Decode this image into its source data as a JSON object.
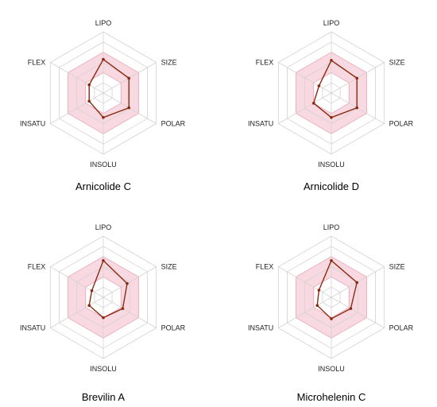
{
  "axes": [
    "LIPO",
    "SIZE",
    "POLAR",
    "INSOLU",
    "INSATU",
    "FLEX"
  ],
  "colors": {
    "optimal_fill": "#f9d9e1",
    "optimal_stroke": "#e9a3b3",
    "grid": "#d2d2d2",
    "series": "#8b2a10"
  },
  "chart_data": [
    {
      "type": "radar",
      "title": "Arnicolide C",
      "categories": [
        "LIPO",
        "SIZE",
        "POLAR",
        "INSOLU",
        "INSATU",
        "FLEX"
      ],
      "values": [
        3.3,
        2.9,
        2.9,
        2.4,
        1.6,
        1.6
      ],
      "rlim": [
        0,
        6
      ],
      "optimal_range": [
        2,
        4
      ],
      "grid": true
    },
    {
      "type": "radar",
      "title": "Arnicolide D",
      "categories": [
        "LIPO",
        "SIZE",
        "POLAR",
        "INSOLU",
        "INSATU",
        "FLEX"
      ],
      "values": [
        3.2,
        2.9,
        2.9,
        2.4,
        2.0,
        1.4
      ],
      "rlim": [
        0,
        6
      ],
      "optimal_range": [
        2,
        4
      ],
      "grid": true
    },
    {
      "type": "radar",
      "title": "Brevilin A",
      "categories": [
        "LIPO",
        "SIZE",
        "POLAR",
        "INSOLU",
        "INSATU",
        "FLEX"
      ],
      "values": [
        3.6,
        2.7,
        2.2,
        2.0,
        1.6,
        1.3
      ],
      "rlim": [
        0,
        6
      ],
      "optimal_range": [
        2,
        4
      ],
      "grid": true
    },
    {
      "type": "radar",
      "title": "Microhelenin C",
      "categories": [
        "LIPO",
        "SIZE",
        "POLAR",
        "INSOLU",
        "INSATU",
        "FLEX"
      ],
      "values": [
        3.6,
        2.9,
        2.2,
        2.1,
        1.6,
        1.4
      ],
      "rlim": [
        0,
        6
      ],
      "optimal_range": [
        2,
        4
      ],
      "grid": true
    }
  ]
}
